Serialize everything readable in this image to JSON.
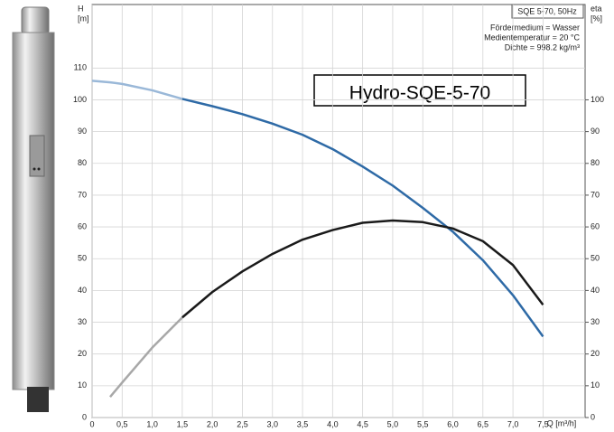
{
  "chart_data": {
    "type": "line",
    "y_label": "H",
    "y_unit": "[m]",
    "y2_label": "eta",
    "y2_unit": "[%]",
    "x_label": "Q [m³/h]",
    "model_box": "SQE 5-70, 50Hz",
    "info": [
      "Fördermedium = Wasser",
      "Medientemperatur = 20 °C",
      "Dichte = 998.2 kg/m³"
    ],
    "title": "Hydro-SQE-5-70",
    "x": [
      0,
      0.3,
      0.5,
      1.0,
      1.5,
      2.0,
      2.5,
      3.0,
      3.5,
      4.0,
      4.5,
      5.0,
      5.5,
      6.0,
      6.5,
      7.0,
      7.5
    ],
    "series": [
      {
        "color": "#9ab8d8",
        "values": [
          106,
          105.5,
          105,
          103,
          100.3,
          null,
          null,
          null,
          null,
          null,
          null,
          null,
          null,
          null,
          null,
          null,
          null
        ]
      },
      {
        "color": "#2e6aa6",
        "values": [
          null,
          null,
          null,
          null,
          100.3,
          98,
          95.5,
          92.5,
          89,
          84.5,
          79,
          73,
          66,
          58.5,
          49.5,
          38.5,
          25.5
        ]
      },
      {
        "color": "#a8a8a8",
        "axis": "y2",
        "values": [
          null,
          6.5,
          11,
          22,
          31.5,
          null,
          null,
          null,
          null,
          null,
          null,
          null,
          null,
          null,
          null,
          null,
          null
        ]
      },
      {
        "color": "#1a1a1a",
        "axis": "y2",
        "values": [
          null,
          null,
          null,
          null,
          31.5,
          39.5,
          46,
          51.5,
          56,
          59,
          61.3,
          62,
          61.5,
          59.5,
          55.5,
          48,
          35.5
        ]
      }
    ],
    "xlim": [
      0,
      8.2
    ],
    "xticks": [
      0,
      {
        "value": 0.5,
        "label": "0,5"
      },
      {
        "value": 1.0,
        "label": "1,0"
      },
      {
        "value": 1.5,
        "label": "1,5"
      },
      {
        "value": 2.0,
        "label": "2,0"
      },
      {
        "value": 2.5,
        "label": "2,5"
      },
      {
        "value": 3.0,
        "label": "3,0"
      },
      {
        "value": 3.5,
        "label": "3,5"
      },
      {
        "value": 4.0,
        "label": "4,0"
      },
      {
        "value": 4.5,
        "label": "4,5"
      },
      {
        "value": 5.0,
        "label": "5,0"
      },
      {
        "value": 5.5,
        "label": "5,5"
      },
      {
        "value": 6.0,
        "label": "6,0"
      },
      {
        "value": 6.5,
        "label": "6,5"
      },
      {
        "value": 7.0,
        "label": "7,0"
      },
      {
        "value": 7.5,
        "label": "7,5"
      }
    ],
    "ylim": [
      0,
      130
    ],
    "yticks": [
      0,
      10,
      20,
      30,
      40,
      50,
      60,
      70,
      80,
      90,
      100,
      110
    ],
    "y2lim": [
      0,
      130
    ],
    "y2ticks": [
      0,
      10,
      20,
      30,
      40,
      50,
      60,
      70,
      80,
      90,
      100
    ],
    "grid": true
  }
}
